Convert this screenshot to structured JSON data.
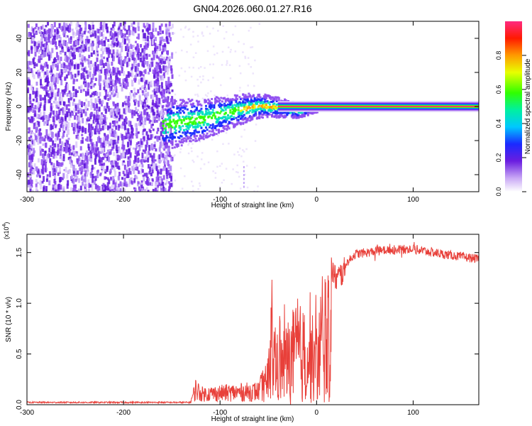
{
  "title": "GN04.2026.060.01.27.R16",
  "chart_data": [
    {
      "type": "heatmap",
      "xlabel": "Height of straight line (km)",
      "ylabel": "Frequency (Hz)",
      "xlim": [
        -300,
        168
      ],
      "ylim": [
        -50,
        50
      ],
      "xticks": [
        -300,
        -200,
        -100,
        0,
        100
      ],
      "yticks": [
        -40,
        -20,
        0,
        20,
        40
      ],
      "colorbar": {
        "label": "Normalized spectral amplitude",
        "range": [
          0,
          1
        ],
        "ticks": [
          "0.0",
          "0.2",
          "0.4",
          "0.6",
          "0.8"
        ]
      },
      "description_points": {
        "noise_region_x": [
          -300,
          -150
        ],
        "signal_center_freq": [
          {
            "x": -160,
            "y": -10
          },
          {
            "x": -120,
            "y": -7
          },
          {
            "x": -100,
            "y": -4
          },
          {
            "x": -80,
            "y": -1
          },
          {
            "x": -60,
            "y": 1
          },
          {
            "x": -40,
            "y": 0
          },
          {
            "x": -20,
            "y": -2
          },
          {
            "x": 0,
            "y": 0
          },
          {
            "x": 100,
            "y": 0
          },
          {
            "x": 168,
            "y": 0
          }
        ]
      }
    },
    {
      "type": "line",
      "xlabel": "Height of straight line (km)",
      "ylabel": "SNR (10 * v/v)",
      "scale_label": "(x10",
      "scale_exp": "4",
      "xlim": [
        -300,
        168
      ],
      "ylim": [
        0,
        1.68
      ],
      "xticks": [
        -300,
        -200,
        -100,
        0,
        100
      ],
      "yticks": [
        "0.0",
        "0.5",
        "1.0",
        "1.5"
      ],
      "series": [
        {
          "color": "#e8403a",
          "envelope": [
            {
              "x": -300,
              "y": 0.02
            },
            {
              "x": -140,
              "y": 0.02
            },
            {
              "x": -130,
              "y": 0.04
            },
            {
              "x": -125,
              "y": 0.25
            },
            {
              "x": -120,
              "y": 0.15
            },
            {
              "x": -60,
              "y": 0.2
            },
            {
              "x": -55,
              "y": 0.35
            },
            {
              "x": -50,
              "y": 0.6
            },
            {
              "x": -48,
              "y": 1.3
            },
            {
              "x": -40,
              "y": 0.8
            },
            {
              "x": -30,
              "y": 1.0
            },
            {
              "x": -20,
              "y": 1.2
            },
            {
              "x": -10,
              "y": 1.1
            },
            {
              "x": 0,
              "y": 1.0
            },
            {
              "x": 10,
              "y": 1.55
            },
            {
              "x": 20,
              "y": 1.3
            },
            {
              "x": 40,
              "y": 1.5
            },
            {
              "x": 70,
              "y": 1.54
            },
            {
              "x": 100,
              "y": 1.55
            },
            {
              "x": 130,
              "y": 1.5
            },
            {
              "x": 168,
              "y": 1.45
            }
          ]
        }
      ]
    }
  ]
}
